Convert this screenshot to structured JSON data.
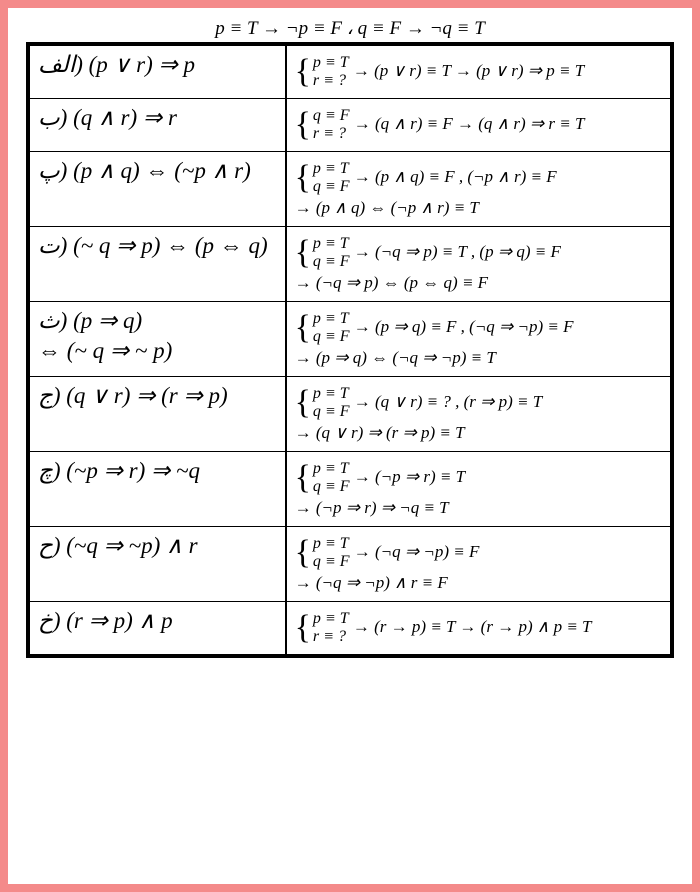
{
  "header": "p ≡ T → ¬p ≡ F  ،  q ≡ F → ¬q ≡ T",
  "rows": [
    {
      "left": "الف) (p ∨ r) ⇒ p",
      "bracket_top": "p ≡ T",
      "bracket_bot": "r ≡ ?",
      "after_bracket": "→ (p ∨ r) ≡ T → (p ∨ r) ⇒ p ≡ T"
    },
    {
      "left": "ب) (q ∧ r) ⇒ r",
      "bracket_top": "q ≡ F",
      "bracket_bot": "r ≡ ?",
      "after_bracket": "→ (q ∧ r) ≡ F → (q ∧ r) ⇒ r ≡ T"
    },
    {
      "left": "پ) (p ∧ q) ⇔ (~p ∧ r)",
      "bracket_top": "p ≡ T",
      "bracket_bot": "q ≡ F",
      "after_bracket": "→ (p ∧ q) ≡ F , (¬p ∧ r) ≡ F",
      "line2": "→ (p ∧ q) ⇔ (¬p ∧ r) ≡ T"
    },
    {
      "left": "ت) (~ q ⇒ p) ⇔ (p ⇔ q)",
      "bracket_top": "p ≡ T",
      "bracket_bot": "q ≡ F",
      "after_bracket": "→ (¬q ⇒ p) ≡ T , (p ⇒ q) ≡ F",
      "line2": "→ (¬q ⇒ p) ⇔ (p ⇔ q) ≡ F"
    },
    {
      "left": "ث) (p ⇒ q)",
      "left2": "⇔ (~ q ⇒ ~ p)",
      "bracket_top": "p ≡ T",
      "bracket_bot": "q ≡ F",
      "after_bracket": "→ (p ⇒ q) ≡ F , (¬q ⇒ ¬p) ≡ F",
      "line2": "→ (p ⇒ q) ⇔ (¬q ⇒ ¬p) ≡ T"
    },
    {
      "left": "ج) (q ∨ r) ⇒ (r ⇒ p)",
      "bracket_top": "p ≡ T",
      "bracket_bot": "q ≡ F",
      "after_bracket": "→ (q ∨ r) ≡ ? , (r ⇒ p) ≡ T",
      "line2": "→ (q ∨ r) ⇒ (r ⇒ p) ≡ T"
    },
    {
      "left": "چ) (~p ⇒ r) ⇒ ~q",
      "bracket_top": "p ≡ T",
      "bracket_bot": "q ≡ F",
      "after_bracket": "→ (¬p ⇒ r) ≡ T",
      "line2": "→ (¬p ⇒ r) ⇒ ¬q ≡ T"
    },
    {
      "left": "ح) (~q ⇒ ~p) ∧ r",
      "bracket_top": "p ≡ T",
      "bracket_bot": "q ≡ F",
      "after_bracket": "→ (¬q ⇒ ¬p) ≡ F",
      "line2": "→ (¬q ⇒ ¬p) ∧ r ≡ F"
    },
    {
      "left": "خ) (r ⇒ p) ∧ p",
      "bracket_top": "p ≡ T",
      "bracket_bot": "r ≡ ?",
      "after_bracket": "→ (r → p) ≡ T → (r → p) ∧ p ≡ T"
    }
  ]
}
